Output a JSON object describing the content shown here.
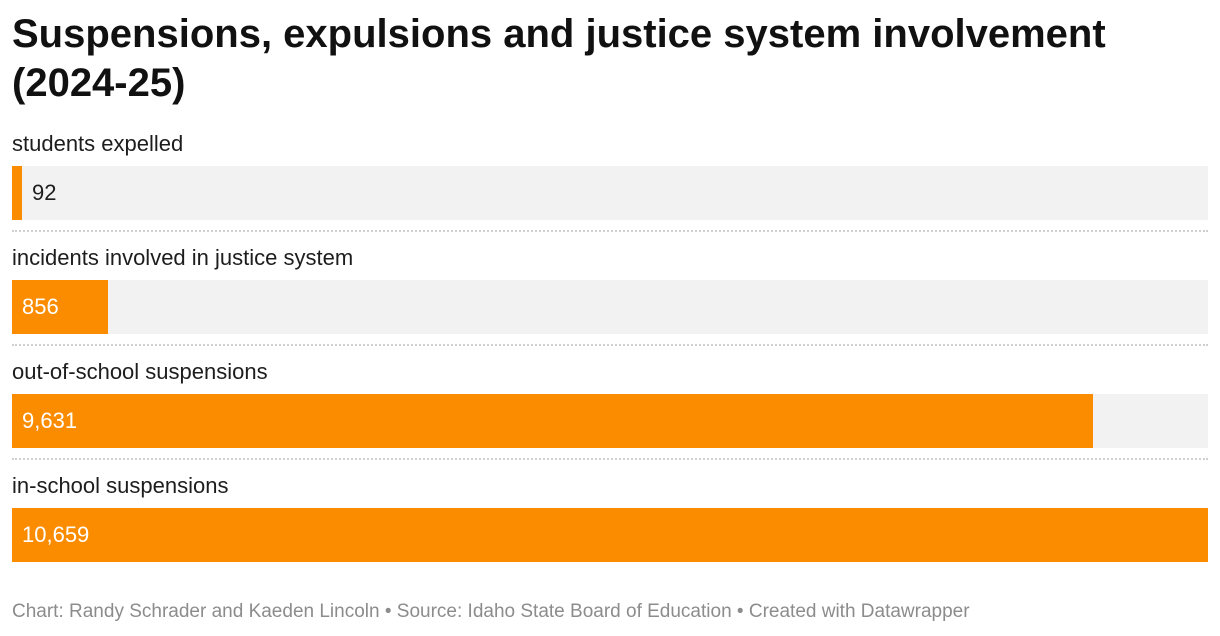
{
  "chart_data": {
    "type": "bar",
    "orientation": "horizontal",
    "title": "Suspensions, expulsions and justice system involvement (2024-25)",
    "categories": [
      "students expelled",
      "incidents involved in justice system",
      "out-of-school suspensions",
      "in-school suspensions"
    ],
    "values": [
      92,
      856,
      9631,
      10659
    ],
    "value_labels": [
      "92",
      "856",
      "9,631",
      "10,659"
    ],
    "xlim": [
      0,
      10659
    ],
    "grid": false,
    "bar_color": "#fb8c00",
    "track_color": "#f2f2f2"
  },
  "footer": {
    "credit": "Chart: Randy Schrader and Kaeden Lincoln",
    "separator": " • ",
    "source": "Source: Idaho State Board of Education",
    "tool": "Created with Datawrapper"
  }
}
